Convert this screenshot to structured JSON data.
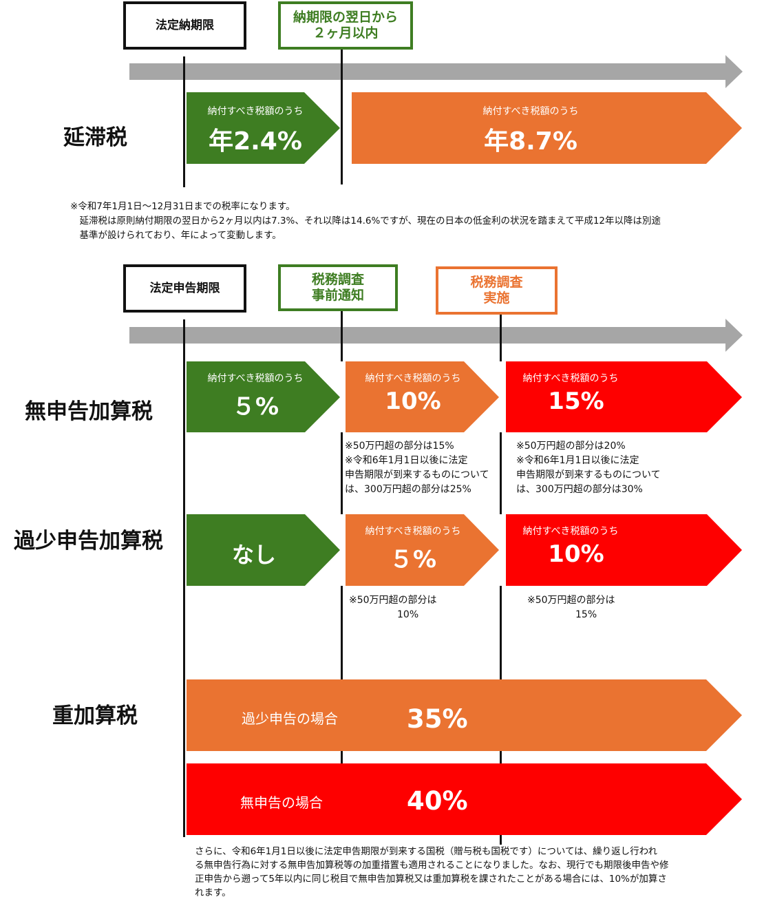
{
  "colors": {
    "green": "#3e7d22",
    "orange": "#ea7331",
    "red": "#fe0000",
    "timeline": "#a6a6a6",
    "text": "#111111"
  },
  "delinquency": {
    "box_legal_deadline": "法定納期限",
    "box_two_months": "納期限の翌日から\n２ヶ月以内",
    "label": "延滞税",
    "rate1": {
      "sub": "納付すべき税額のうち",
      "value": "年2.4%"
    },
    "rate2": {
      "sub": "納付すべき税額のうち",
      "value": "年8.7%"
    },
    "note": "※令和7年1月1日～12月31日までの税率になります。\n　延滞税は原則納付期限の翌日から2ヶ月以内は7.3%、それ以降は14.6%ですが、現在の日本の低金利の状況を踏まえて平成12年以降は別途\n　基準が設けられており、年によって変動します。"
  },
  "penalties": {
    "box_filing_deadline": "法定申告期限",
    "box_prior_notice": "税務調査\n事前通知",
    "box_audit": "税務調査\n実施",
    "no_filing": {
      "label": "無申告加算税",
      "stage1": {
        "sub": "納付すべき税額のうち",
        "value": "５%"
      },
      "stage2": {
        "sub": "納付すべき税額のうち",
        "value": "10%"
      },
      "stage3": {
        "sub": "納付すべき税額のうち",
        "value": "15%"
      },
      "note2": "※50万円超の部分は15%\n※令和6年1月1日以後に法定\n申告期限が到来するものについて\nは、300万円超の部分は25%",
      "note3": "※50万円超の部分は20%\n※令和6年1月1日以後に法定\n申告期限が到来するものについて\nは、300万円超の部分は30%"
    },
    "underreporting": {
      "label": "過少申告加算税",
      "stage1": {
        "value": "なし"
      },
      "stage2": {
        "sub": "納付すべき税額のうち",
        "value": "５%"
      },
      "stage3": {
        "sub": "納付すべき税額のうち",
        "value": "10%"
      },
      "note2": "※50万円超の部分は\n　　　　　10%",
      "note3": "※50万円超の部分は\n　　　　　15%"
    },
    "heavy": {
      "label": "重加算税",
      "under": {
        "case": "過少申告の場合",
        "value": "35%"
      },
      "nofile": {
        "case": "無申告の場合",
        "value": "40%"
      }
    },
    "footer_note": "さらに、令和6年1月1日以後に法定申告期限が到来する国税（贈与税も国税です）については、繰り返し行われ\nる無申告行為に対する無申告加算税等の加重措置も適用されることになりました。なお、現行でも期限後申告や修\n正申告から遡って5年以内に同じ税目で無申告加算税又は重加算税を課されたことがある場合には、10%が加算さ\nれます。"
  }
}
